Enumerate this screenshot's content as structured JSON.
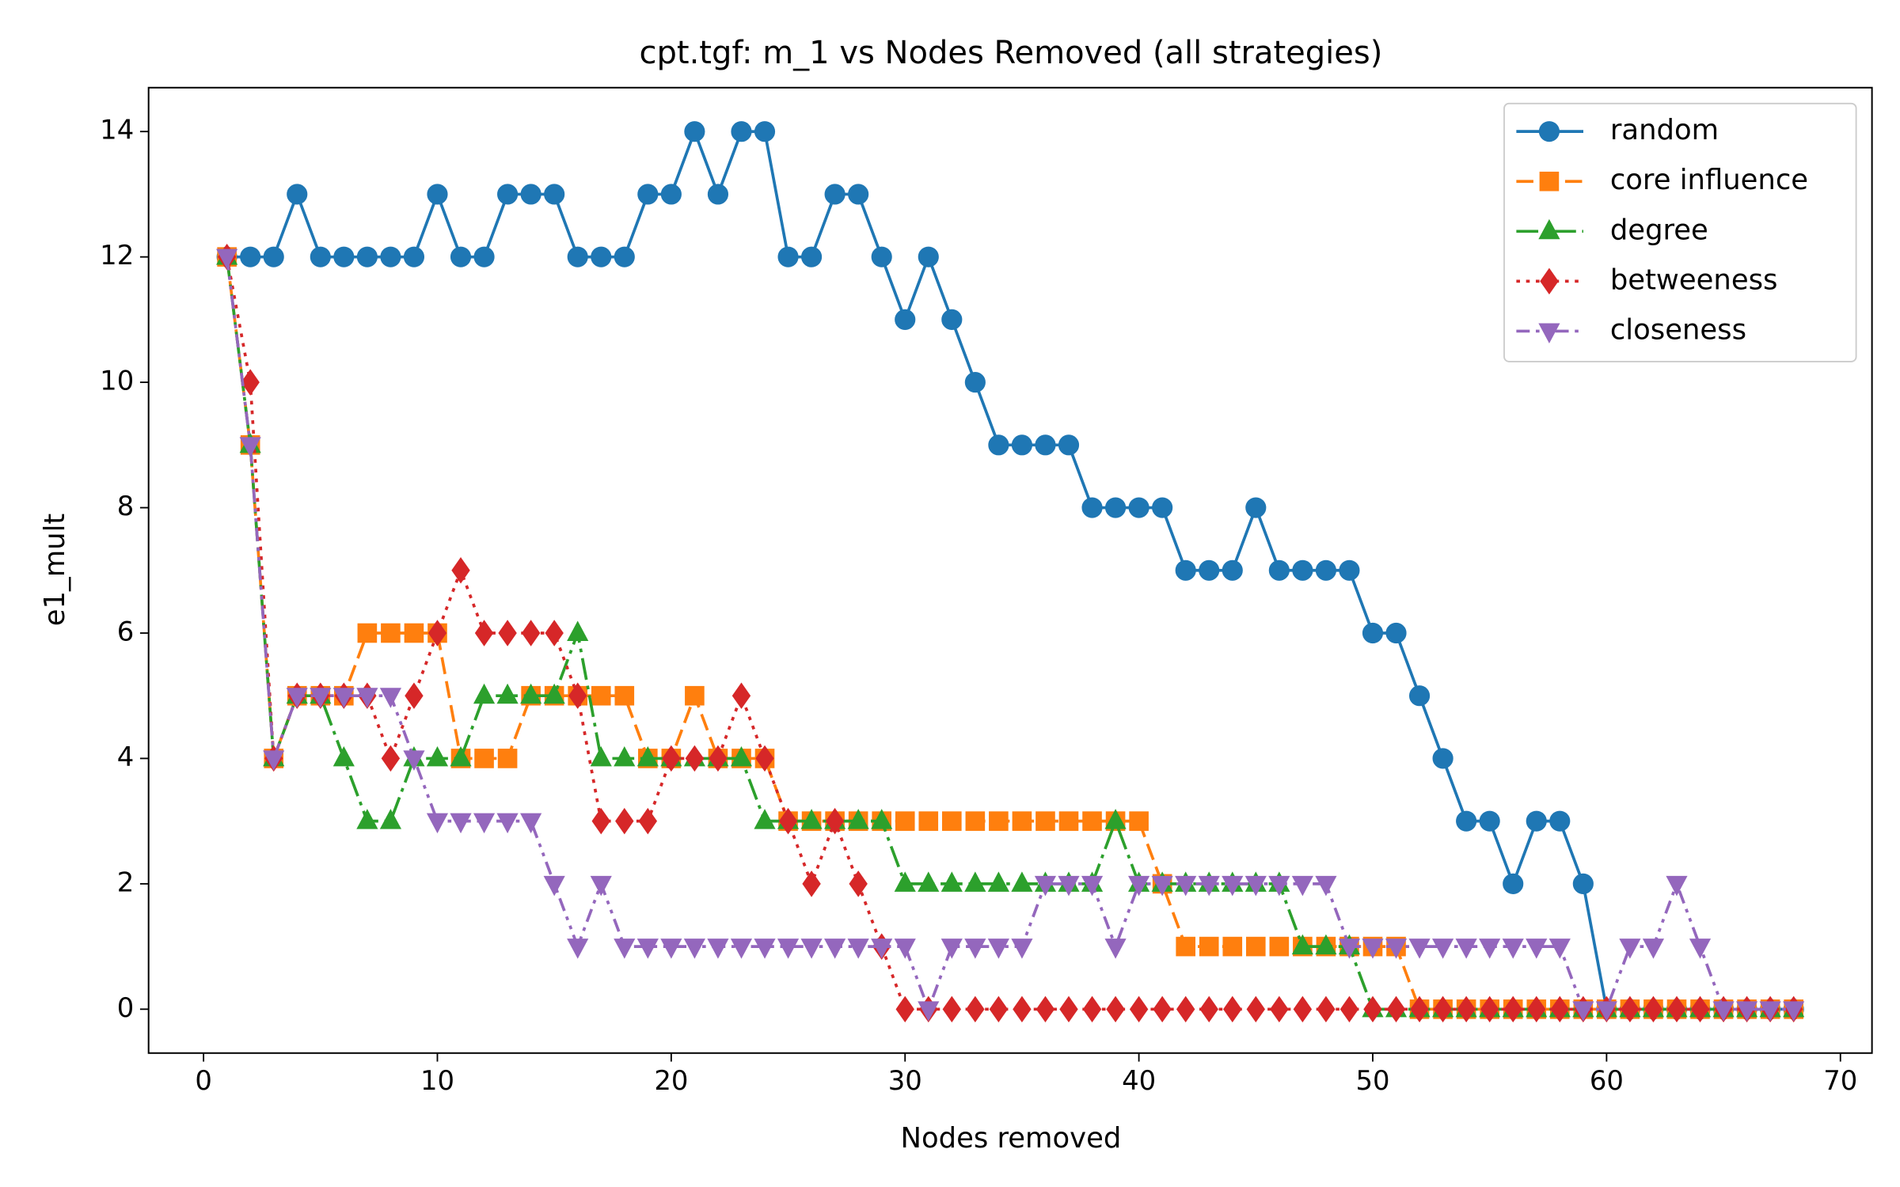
{
  "chart_data": {
    "type": "line",
    "title": "cpt.tgf: m_1 vs Nodes Removed (all strategies)",
    "xlabel": "Nodes removed",
    "ylabel": "e1_mult",
    "x": [
      1,
      2,
      3,
      4,
      5,
      6,
      7,
      8,
      9,
      10,
      11,
      12,
      13,
      14,
      15,
      16,
      17,
      18,
      19,
      20,
      21,
      22,
      23,
      24,
      25,
      26,
      27,
      28,
      29,
      30,
      31,
      32,
      33,
      34,
      35,
      36,
      37,
      38,
      39,
      40,
      41,
      42,
      43,
      44,
      45,
      46,
      47,
      48,
      49,
      50,
      51,
      52,
      53,
      54,
      55,
      56,
      57,
      58,
      59,
      60,
      61,
      62,
      63,
      64,
      65,
      66,
      67,
      68
    ],
    "series": [
      {
        "name": "random",
        "color": "#1f77b4",
        "linestyle": "solid",
        "marker": "circle",
        "values": [
          12,
          12,
          12,
          13,
          12,
          12,
          12,
          12,
          12,
          13,
          12,
          12,
          13,
          13,
          13,
          12,
          12,
          12,
          13,
          13,
          14,
          13,
          14,
          14,
          12,
          12,
          13,
          13,
          12,
          11,
          12,
          11,
          10,
          9,
          9,
          9,
          9,
          8,
          8,
          8,
          8,
          7,
          7,
          7,
          8,
          7,
          7,
          7,
          7,
          6,
          6,
          5,
          4,
          3,
          3,
          2,
          3,
          3,
          2,
          0,
          0,
          0,
          0,
          0,
          0,
          0,
          0,
          0
        ]
      },
      {
        "name": "core influence",
        "color": "#ff7f0e",
        "linestyle": "dashed",
        "marker": "square",
        "values": [
          12,
          9,
          4,
          5,
          5,
          5,
          6,
          6,
          6,
          6,
          4,
          4,
          4,
          5,
          5,
          5,
          5,
          5,
          4,
          4,
          5,
          4,
          4,
          4,
          3,
          3,
          3,
          3,
          3,
          3,
          3,
          3,
          3,
          3,
          3,
          3,
          3,
          3,
          3,
          3,
          2,
          1,
          1,
          1,
          1,
          1,
          1,
          1,
          1,
          1,
          1,
          0,
          0,
          0,
          0,
          0,
          0,
          0,
          0,
          0,
          0,
          0,
          0,
          0,
          0,
          0,
          0,
          0
        ]
      },
      {
        "name": "degree",
        "color": "#2ca02c",
        "linestyle": "dashdot",
        "marker": "triangle-up",
        "values": [
          12,
          9,
          4,
          5,
          5,
          4,
          3,
          3,
          4,
          4,
          4,
          5,
          5,
          5,
          5,
          6,
          4,
          4,
          4,
          4,
          4,
          4,
          4,
          3,
          3,
          3,
          3,
          3,
          3,
          2,
          2,
          2,
          2,
          2,
          2,
          2,
          2,
          2,
          3,
          2,
          2,
          2,
          2,
          2,
          2,
          2,
          1,
          1,
          1,
          0,
          0,
          0,
          0,
          0,
          0,
          0,
          0,
          0,
          0,
          0,
          0,
          0,
          0,
          0,
          0,
          0,
          0,
          0
        ]
      },
      {
        "name": "betweeness",
        "color": "#d62728",
        "linestyle": "dotted",
        "marker": "diamond",
        "values": [
          12,
          10,
          4,
          5,
          5,
          5,
          5,
          4,
          5,
          6,
          7,
          6,
          6,
          6,
          6,
          5,
          3,
          3,
          3,
          4,
          4,
          4,
          5,
          4,
          3,
          2,
          3,
          2,
          1,
          0,
          0,
          0,
          0,
          0,
          0,
          0,
          0,
          0,
          0,
          0,
          0,
          0,
          0,
          0,
          0,
          0,
          0,
          0,
          0,
          0,
          0,
          0,
          0,
          0,
          0,
          0,
          0,
          0,
          0,
          0,
          0,
          0,
          0,
          0,
          0,
          0,
          0,
          0
        ]
      },
      {
        "name": "closeness",
        "color": "#9467bd",
        "linestyle": "dashdotdot",
        "marker": "triangle-down",
        "values": [
          12,
          9,
          4,
          5,
          5,
          5,
          5,
          5,
          4,
          3,
          3,
          3,
          3,
          3,
          2,
          1,
          2,
          1,
          1,
          1,
          1,
          1,
          1,
          1,
          1,
          1,
          1,
          1,
          1,
          1,
          0,
          1,
          1,
          1,
          1,
          2,
          2,
          2,
          1,
          2,
          2,
          2,
          2,
          2,
          2,
          2,
          2,
          2,
          1,
          1,
          1,
          1,
          1,
          1,
          1,
          1,
          1,
          1,
          0,
          0,
          1,
          1,
          2,
          1,
          0,
          0,
          0,
          0
        ]
      }
    ],
    "xlim": [
      -2.35,
      71.35
    ],
    "xticks": [
      0,
      10,
      20,
      30,
      40,
      50,
      60,
      70
    ],
    "ylim": [
      -0.7,
      14.7
    ],
    "yticks": [
      0,
      2,
      4,
      6,
      8,
      10,
      12,
      14
    ],
    "grid": false,
    "legend": "upper right"
  }
}
